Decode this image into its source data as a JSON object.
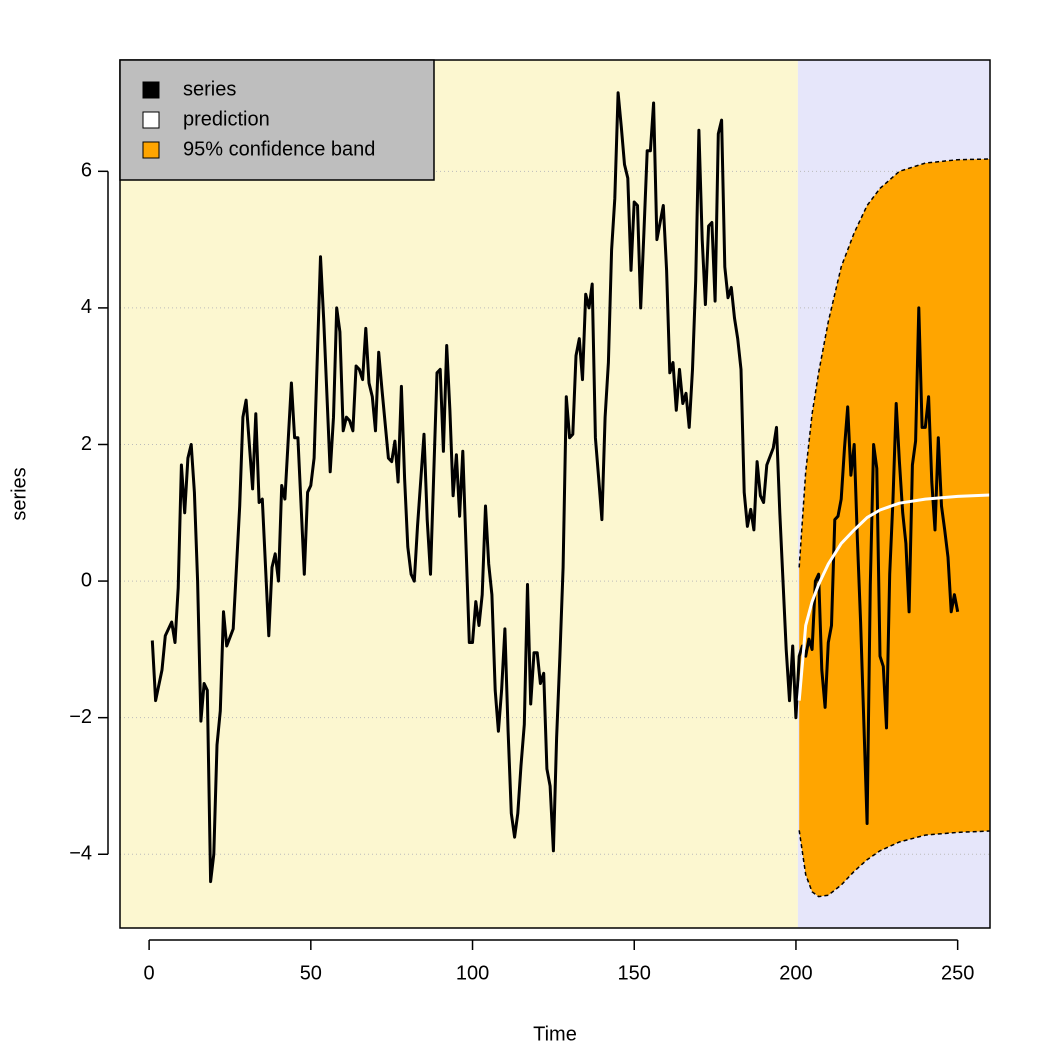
{
  "chart_data": {
    "type": "line",
    "xlabel": "Time",
    "ylabel": "series",
    "xlim": [
      -9,
      260
    ],
    "ylim": [
      -5.08,
      7.63
    ],
    "xticks": [
      0,
      50,
      100,
      150,
      200,
      250
    ],
    "yticks": [
      {
        "value": -4,
        "label": "−4"
      },
      {
        "value": -2,
        "label": "−2"
      },
      0,
      2,
      4,
      6
    ],
    "grid": true,
    "legend": "top-left",
    "forecast_start": 200.6,
    "background_colors": [
      "#fcf7d0",
      "#e6e6fa"
    ],
    "series": [
      {
        "name": "series",
        "color": "#000000",
        "x": [
          1,
          2,
          4,
          5,
          7,
          8,
          9,
          10,
          11,
          12,
          13,
          14,
          15,
          16,
          17,
          18,
          19,
          20,
          21,
          22,
          23,
          24,
          26,
          28,
          29,
          30,
          32,
          33,
          34,
          35,
          37,
          38,
          39,
          40,
          41,
          42,
          44,
          45,
          46,
          48,
          49,
          50,
          51,
          53,
          54,
          56,
          57,
          58,
          59,
          60,
          61,
          62,
          63,
          64,
          65,
          66,
          67,
          68,
          69,
          70,
          71,
          72,
          74,
          75,
          76,
          77,
          78,
          79,
          80,
          81,
          82,
          83,
          85,
          86,
          87,
          89,
          90,
          91,
          92,
          93,
          94,
          95,
          96,
          97,
          99,
          100,
          101,
          102,
          103,
          104,
          105,
          106,
          107,
          108,
          109,
          110,
          111,
          112,
          113,
          114,
          115,
          116,
          117,
          118,
          119,
          120,
          121,
          122,
          123,
          124,
          125,
          126,
          127,
          128,
          129,
          130,
          131,
          132,
          133,
          134,
          135,
          136,
          137,
          138,
          139,
          140,
          141,
          142,
          143,
          144,
          145,
          146,
          147,
          148,
          149,
          150,
          151,
          152,
          153,
          154,
          155,
          156,
          157,
          158,
          159,
          160,
          161,
          162,
          163,
          164,
          165,
          166,
          167,
          168,
          169,
          170,
          171,
          172,
          173,
          174,
          175,
          176,
          177,
          178,
          179,
          180,
          181,
          182,
          183,
          184,
          185,
          186,
          187,
          188,
          189,
          190,
          191,
          193,
          194,
          195,
          197,
          198,
          199,
          200,
          201,
          202,
          203,
          204,
          205,
          206,
          207,
          208,
          209,
          210,
          211,
          212,
          213,
          214,
          215,
          216,
          217,
          218,
          219,
          220,
          221,
          222,
          223,
          224,
          225,
          226,
          227,
          228,
          229,
          230,
          231,
          232,
          233,
          234,
          235,
          236,
          237,
          238,
          239,
          240,
          241,
          242,
          243,
          244,
          245,
          246,
          247,
          248,
          249,
          250
        ],
        "values": [
          -0.87,
          -1.75,
          -1.3,
          -0.8,
          -0.6,
          -0.9,
          -0.1,
          1.7,
          1.0,
          1.8,
          2.0,
          1.3,
          0,
          -2.05,
          -1.5,
          -1.6,
          -4.4,
          -4.0,
          -2.4,
          -1.9,
          -0.45,
          -0.95,
          -0.7,
          1.1,
          2.4,
          2.65,
          1.35,
          2.45,
          1.15,
          1.2,
          -0.8,
          0.2,
          0.4,
          0.0,
          1.4,
          1.2,
          2.9,
          2.1,
          2.1,
          0.1,
          1.3,
          1.4,
          1.8,
          4.75,
          3.8,
          1.6,
          2.4,
          4.0,
          3.65,
          2.2,
          2.4,
          2.35,
          2.2,
          3.15,
          3.1,
          2.95,
          3.7,
          2.9,
          2.7,
          2.2,
          3.35,
          2.8,
          1.8,
          1.75,
          2.05,
          1.45,
          2.85,
          1.5,
          0.5,
          0.1,
          0.0,
          0.8,
          2.15,
          0.9,
          0.1,
          3.05,
          3.1,
          1.9,
          3.45,
          2.5,
          1.25,
          1.85,
          0.95,
          1.9,
          -0.9,
          -0.9,
          -0.3,
          -0.65,
          -0.2,
          1.1,
          0.25,
          -0.2,
          -1.6,
          -2.2,
          -1.6,
          -0.7,
          -2.2,
          -3.4,
          -3.75,
          -3.4,
          -2.7,
          -2.1,
          -0.05,
          -1.8,
          -1.05,
          -1.05,
          -1.5,
          -1.35,
          -2.75,
          -3.0,
          -3.95,
          -2.3,
          -1.1,
          0.2,
          2.7,
          2.1,
          2.15,
          3.3,
          3.55,
          2.95,
          4.2,
          4.0,
          4.35,
          2.1,
          1.5,
          0.9,
          2.4,
          3.2,
          4.85,
          5.6,
          7.15,
          6.65,
          6.1,
          5.9,
          4.55,
          5.55,
          5.5,
          4.0,
          5.1,
          6.3,
          6.3,
          7.0,
          5.0,
          5.25,
          5.5,
          4.55,
          3.05,
          3.2,
          2.5,
          3.1,
          2.6,
          2.75,
          2.25,
          3.1,
          4.4,
          6.6,
          5.0,
          4.05,
          5.2,
          5.25,
          4.1,
          6.55,
          6.75,
          4.6,
          4.15,
          4.3,
          3.85,
          3.55,
          3.1,
          1.3,
          0.8,
          1.05,
          0.75,
          1.75,
          1.25,
          1.15,
          1.7,
          1.95,
          2.25,
          1.0,
          -1.0,
          -1.75,
          -0.95,
          -2.0,
          -1.1,
          -0.95,
          -1.1,
          -0.85,
          -1.0,
          0.0,
          0.1,
          -1.3,
          -1.85,
          -0.9,
          -0.65,
          0.9,
          0.95,
          1.2,
          1.95,
          2.55,
          1.55,
          2.0,
          0.6,
          -0.6,
          -2.1,
          -3.55,
          -0.05,
          2.0,
          1.65,
          -1.1,
          -1.25,
          -2.15,
          0.1,
          1.2,
          2.6,
          1.75,
          1.0,
          0.55,
          -0.45,
          1.7,
          2.05,
          4.0,
          2.25,
          2.25,
          2.7,
          1.45,
          0.75,
          2.1,
          1.1,
          0.75,
          0.35,
          -0.45,
          -0.2,
          -0.45
        ]
      },
      {
        "name": "prediction",
        "color": "#ffffff",
        "x": [
          201,
          203,
          205,
          207,
          210,
          214,
          218,
          222,
          226,
          232,
          240,
          250,
          260
        ],
        "values": [
          -1.75,
          -0.65,
          -0.3,
          -0.05,
          0.25,
          0.55,
          0.75,
          0.93,
          1.04,
          1.14,
          1.2,
          1.24,
          1.26
        ]
      },
      {
        "name": "95% confidence band",
        "color": "#ffa500",
        "x": [
          201,
          203,
          205,
          207,
          210,
          214,
          218,
          222,
          226,
          232,
          240,
          250,
          260
        ],
        "upper": [
          0.2,
          1.6,
          2.45,
          3.05,
          3.8,
          4.6,
          5.1,
          5.5,
          5.75,
          6.0,
          6.12,
          6.17,
          6.18
        ],
        "lower": [
          -3.65,
          -4.3,
          -4.55,
          -4.62,
          -4.6,
          -4.45,
          -4.25,
          -4.08,
          -3.95,
          -3.82,
          -3.72,
          -3.68,
          -3.66
        ]
      }
    ]
  }
}
